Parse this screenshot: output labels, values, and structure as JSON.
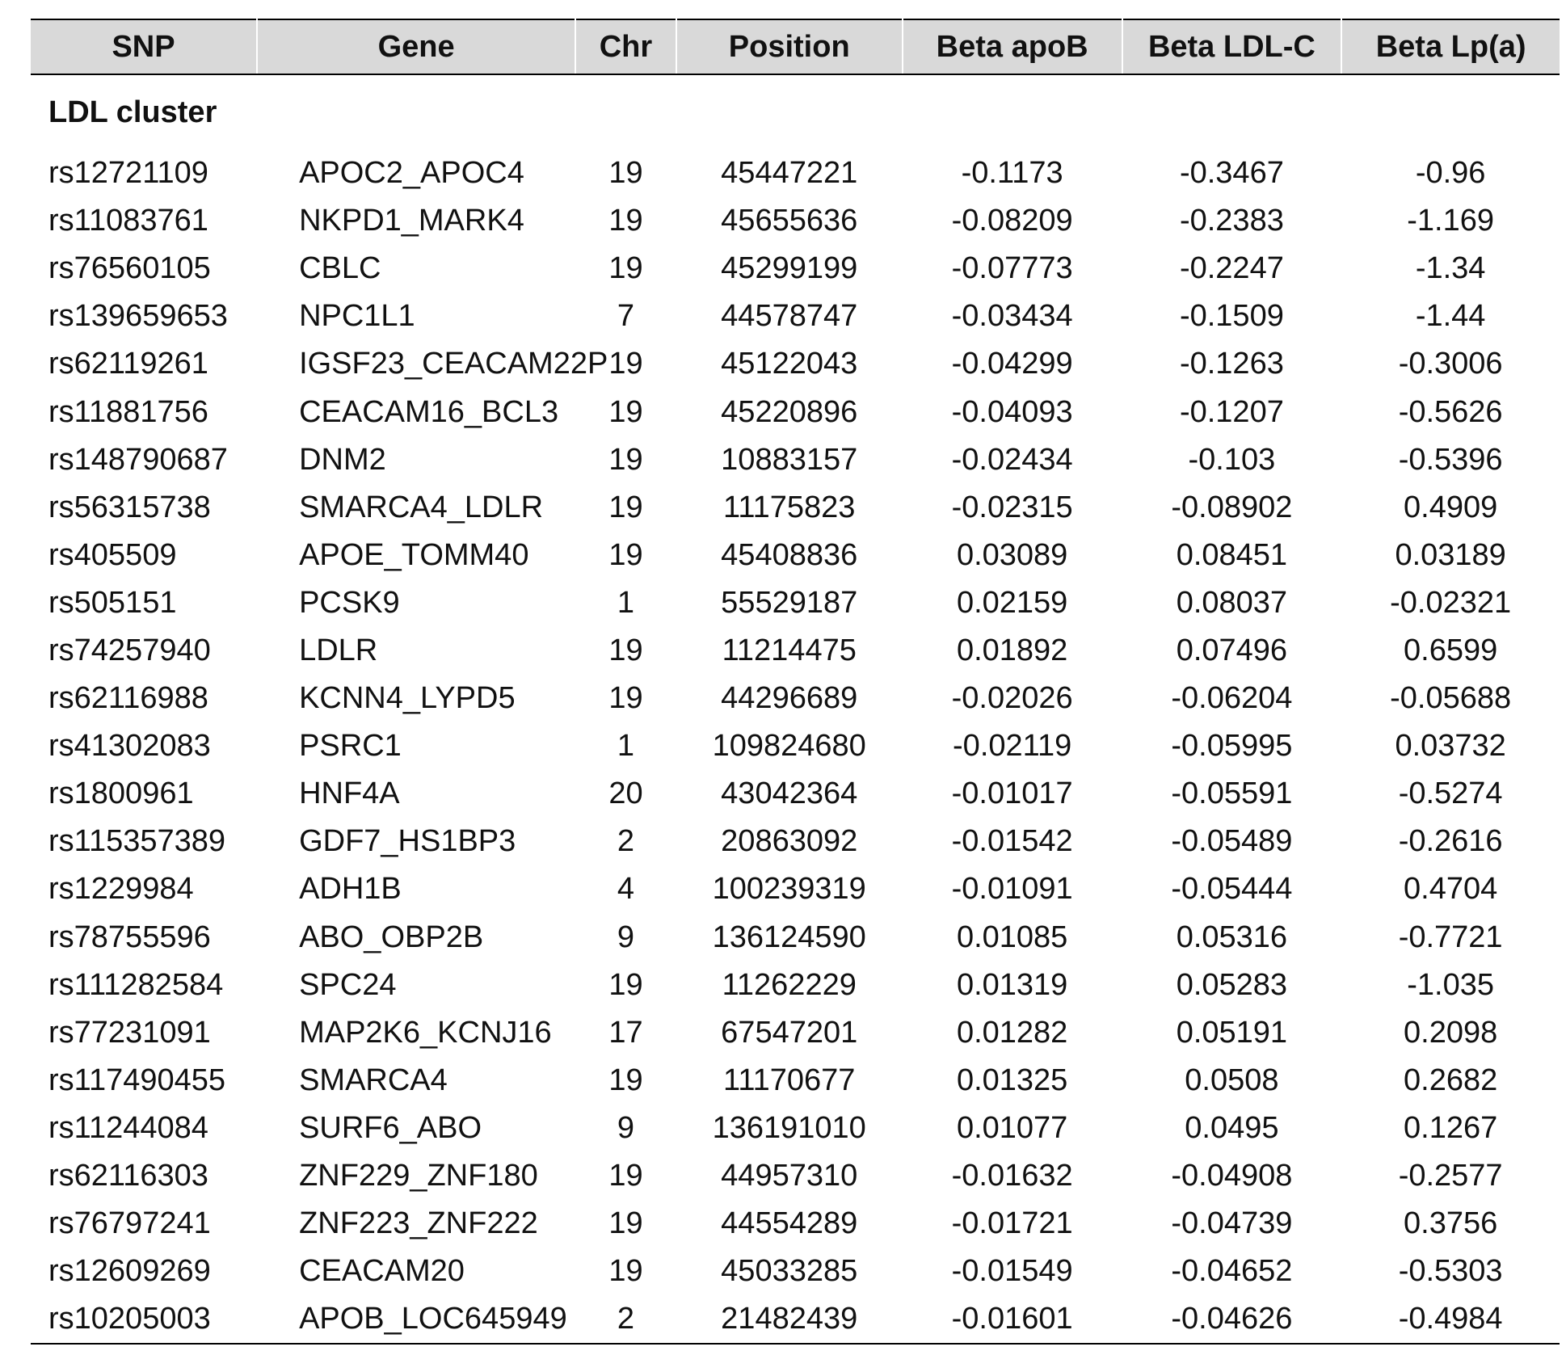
{
  "table": {
    "headers": [
      "SNP",
      "Gene",
      "Chr",
      "Position",
      "Beta apoB",
      "Beta LDL-C",
      "Beta Lp(a)"
    ],
    "cluster_label": "LDL cluster",
    "rows": [
      [
        "rs12721109",
        "APOC2_APOC4",
        "19",
        "45447221",
        "-0.1173",
        "-0.3467",
        "-0.96"
      ],
      [
        "rs11083761",
        "NKPD1_MARK4",
        "19",
        "45655636",
        "-0.08209",
        "-0.2383",
        "-1.169"
      ],
      [
        "rs76560105",
        "CBLC",
        "19",
        "45299199",
        "-0.07773",
        "-0.2247",
        "-1.34"
      ],
      [
        "rs139659653",
        "NPC1L1",
        "7",
        "44578747",
        "-0.03434",
        "-0.1509",
        "-1.44"
      ],
      [
        "rs62119261",
        "IGSF23_CEACAM22P",
        "19",
        "45122043",
        "-0.04299",
        "-0.1263",
        "-0.3006"
      ],
      [
        "rs11881756",
        "CEACAM16_BCL3",
        "19",
        "45220896",
        "-0.04093",
        "-0.1207",
        "-0.5626"
      ],
      [
        "rs148790687",
        "DNM2",
        "19",
        "10883157",
        "-0.02434",
        "-0.103",
        "-0.5396"
      ],
      [
        "rs56315738",
        "SMARCA4_LDLR",
        "19",
        "11175823",
        "-0.02315",
        "-0.08902",
        "0.4909"
      ],
      [
        "rs405509",
        "APOE_TOMM40",
        "19",
        "45408836",
        "0.03089",
        "0.08451",
        "0.03189"
      ],
      [
        "rs505151",
        "PCSK9",
        "1",
        "55529187",
        "0.02159",
        "0.08037",
        "-0.02321"
      ],
      [
        "rs74257940",
        "LDLR",
        "19",
        "11214475",
        "0.01892",
        "0.07496",
        "0.6599"
      ],
      [
        "rs62116988",
        "KCNN4_LYPD5",
        "19",
        "44296689",
        "-0.02026",
        "-0.06204",
        "-0.05688"
      ],
      [
        "rs41302083",
        "PSRC1",
        "1",
        "109824680",
        "-0.02119",
        "-0.05995",
        "0.03732"
      ],
      [
        "rs1800961",
        "HNF4A",
        "20",
        "43042364",
        "-0.01017",
        "-0.05591",
        "-0.5274"
      ],
      [
        "rs115357389",
        "GDF7_HS1BP3",
        "2",
        "20863092",
        "-0.01542",
        "-0.05489",
        "-0.2616"
      ],
      [
        "rs1229984",
        "ADH1B",
        "4",
        "100239319",
        "-0.01091",
        "-0.05444",
        "0.4704"
      ],
      [
        "rs78755596",
        "ABO_OBP2B",
        "9",
        "136124590",
        "0.01085",
        "0.05316",
        "-0.7721"
      ],
      [
        "rs111282584",
        "SPC24",
        "19",
        "11262229",
        "0.01319",
        "0.05283",
        "-1.035"
      ],
      [
        "rs77231091",
        "MAP2K6_KCNJ16",
        "17",
        "67547201",
        "0.01282",
        "0.05191",
        "0.2098"
      ],
      [
        "rs117490455",
        "SMARCA4",
        "19",
        "11170677",
        "0.01325",
        "0.0508",
        "0.2682"
      ],
      [
        "rs11244084",
        "SURF6_ABO",
        "9",
        "136191010",
        "0.01077",
        "0.0495",
        "0.1267"
      ],
      [
        "rs62116303",
        "ZNF229_ZNF180",
        "19",
        "44957310",
        "-0.01632",
        "-0.04908",
        "-0.2577"
      ],
      [
        "rs76797241",
        "ZNF223_ZNF222",
        "19",
        "44554289",
        "-0.01721",
        "-0.04739",
        "0.3756"
      ],
      [
        "rs12609269",
        "CEACAM20",
        "19",
        "45033285",
        "-0.01549",
        "-0.04652",
        "-0.5303"
      ],
      [
        "rs10205003",
        "APOB_LOC645949",
        "2",
        "21482439",
        "-0.01601",
        "-0.04626",
        "-0.4984"
      ]
    ]
  }
}
